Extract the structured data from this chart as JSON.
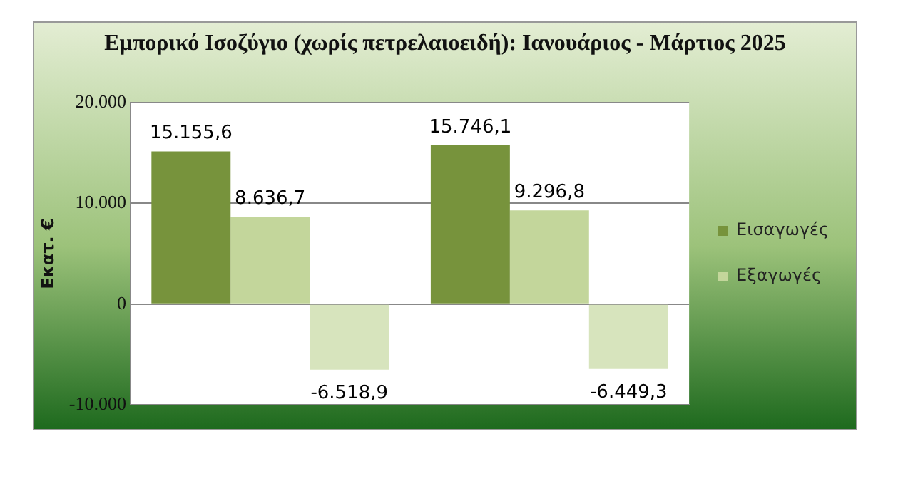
{
  "chart_data": {
    "type": "bar",
    "title": "Εμπορικό Ισοζύγιο (χωρίς πετρελαιοειδή): Ιανουάριος - Μάρτιος 2025",
    "ylabel": "Εκατ. €",
    "categories": [
      null,
      null
    ],
    "series": [
      {
        "name": "Εισαγωγές",
        "color": "#77933c",
        "values": [
          15155.6,
          15746.1
        ],
        "value_labels": [
          "15.155,6",
          "15.746,1"
        ]
      },
      {
        "name": "Εξαγωγές",
        "color": "#c3d69b",
        "values": [
          8636.7,
          9296.8
        ],
        "value_labels": [
          "8.636,7",
          "9.296,8"
        ]
      },
      {
        "color": "#d7e4bd",
        "values": [
          -6518.9,
          -6449.3
        ],
        "value_labels": [
          "-6.518,9",
          "-6.449,3"
        ]
      }
    ],
    "ylim": [
      -10000,
      20000
    ],
    "yticks": [
      {
        "value": -10000,
        "label": "-10.000"
      },
      {
        "value": 0,
        "label": "0"
      },
      {
        "value": 10000,
        "label": "10.000"
      },
      {
        "value": 20000,
        "label": "20.000"
      }
    ],
    "grid": "y",
    "legend": "right"
  }
}
